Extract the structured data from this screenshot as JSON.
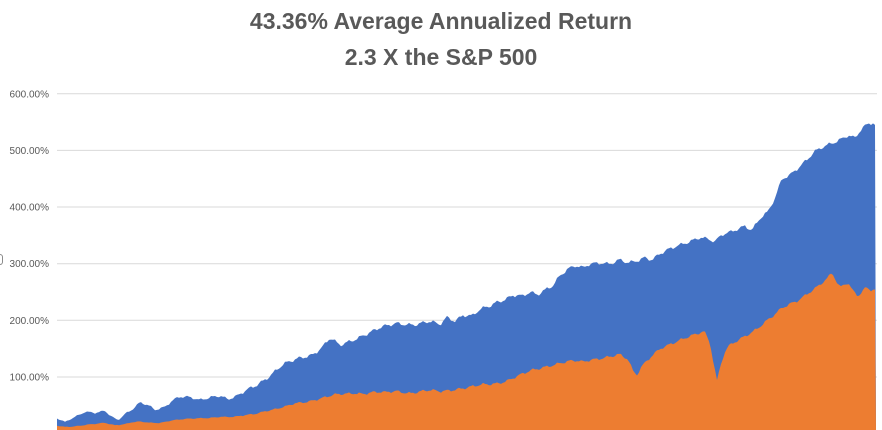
{
  "chart_data": {
    "type": "area",
    "title": "43.36% Average Annualized Return",
    "subtitle": "2.3 X the S&P 500",
    "xlabel": "",
    "ylabel": "",
    "x_axis": {
      "labels_visible": false,
      "unit": "px",
      "range": [
        57,
        876
      ]
    },
    "y_axis": {
      "unit": "%",
      "ylim": [
        0,
        600
      ],
      "tick_values": [
        600,
        500,
        400,
        300,
        200,
        100,
        0
      ],
      "tick_labels": [
        "600.00%",
        "500.00%",
        "400.00%",
        "300.00%",
        "200.00%",
        "100.00%",
        "0.00%"
      ]
    },
    "grid": true,
    "legend": "none",
    "colors": {
      "blue_series": "#4472C4",
      "orange_series": "#ED7D31",
      "gridline": "#d9d9d9",
      "text": "#595959"
    },
    "series": [
      {
        "name": "cumulative-return-blue",
        "color": "#4472C4",
        "noise_amplitude_pct": 5,
        "points": [
          [
            57,
            27
          ],
          [
            65,
            21
          ],
          [
            75,
            30
          ],
          [
            85,
            38
          ],
          [
            95,
            36
          ],
          [
            105,
            40
          ],
          [
            112,
            30
          ],
          [
            118,
            24
          ],
          [
            125,
            35
          ],
          [
            132,
            42
          ],
          [
            140,
            54
          ],
          [
            148,
            50
          ],
          [
            155,
            42
          ],
          [
            165,
            48
          ],
          [
            172,
            59
          ],
          [
            180,
            65
          ],
          [
            190,
            63
          ],
          [
            200,
            59
          ],
          [
            210,
            65
          ],
          [
            220,
            68
          ],
          [
            228,
            60
          ],
          [
            238,
            66
          ],
          [
            247,
            77
          ],
          [
            255,
            85
          ],
          [
            268,
            100
          ],
          [
            283,
            121
          ],
          [
            300,
            134
          ],
          [
            312,
            140
          ],
          [
            322,
            152
          ],
          [
            330,
            168
          ],
          [
            340,
            155
          ],
          [
            352,
            165
          ],
          [
            363,
            174
          ],
          [
            380,
            186
          ],
          [
            397,
            195
          ],
          [
            415,
            193
          ],
          [
            430,
            197
          ],
          [
            440,
            192
          ],
          [
            447,
            206
          ],
          [
            455,
            200
          ],
          [
            463,
            210
          ],
          [
            472,
            207
          ],
          [
            480,
            218
          ],
          [
            490,
            225
          ],
          [
            497,
            233
          ],
          [
            505,
            238
          ],
          [
            513,
            245
          ],
          [
            522,
            242
          ],
          [
            530,
            248
          ],
          [
            538,
            245
          ],
          [
            547,
            257
          ],
          [
            553,
            263
          ],
          [
            560,
            280
          ],
          [
            568,
            290
          ],
          [
            575,
            295
          ],
          [
            583,
            292
          ],
          [
            590,
            300
          ],
          [
            600,
            303
          ],
          [
            610,
            300
          ],
          [
            620,
            306
          ],
          [
            628,
            300
          ],
          [
            637,
            305
          ],
          [
            645,
            312
          ],
          [
            652,
            308
          ],
          [
            660,
            318
          ],
          [
            670,
            325
          ],
          [
            680,
            332
          ],
          [
            690,
            340
          ],
          [
            700,
            348
          ],
          [
            708,
            344
          ],
          [
            715,
            338
          ],
          [
            722,
            350
          ],
          [
            730,
            355
          ],
          [
            738,
            362
          ],
          [
            745,
            368
          ],
          [
            752,
            360
          ],
          [
            760,
            380
          ],
          [
            768,
            390
          ],
          [
            775,
            415
          ],
          [
            782,
            450
          ],
          [
            790,
            458
          ],
          [
            798,
            470
          ],
          [
            806,
            482
          ],
          [
            815,
            497
          ],
          [
            823,
            505
          ],
          [
            832,
            513
          ],
          [
            840,
            520
          ],
          [
            848,
            528
          ],
          [
            855,
            522
          ],
          [
            862,
            538
          ],
          [
            868,
            545
          ],
          [
            873,
            548
          ],
          [
            876,
            542
          ]
        ]
      },
      {
        "name": "sp500-cumulative-return-orange",
        "color": "#ED7D31",
        "noise_amplitude_pct": 4,
        "points": [
          [
            57,
            14
          ],
          [
            65,
            12
          ],
          [
            75,
            13
          ],
          [
            85,
            15
          ],
          [
            95,
            17
          ],
          [
            105,
            19
          ],
          [
            115,
            15
          ],
          [
            125,
            17
          ],
          [
            132,
            20
          ],
          [
            140,
            21
          ],
          [
            150,
            19
          ],
          [
            160,
            19
          ],
          [
            170,
            23
          ],
          [
            180,
            25
          ],
          [
            190,
            26
          ],
          [
            200,
            27
          ],
          [
            210,
            28
          ],
          [
            220,
            30
          ],
          [
            228,
            29
          ],
          [
            238,
            30
          ],
          [
            247,
            33
          ],
          [
            255,
            35
          ],
          [
            265,
            40
          ],
          [
            275,
            43
          ],
          [
            285,
            47
          ],
          [
            295,
            53
          ],
          [
            305,
            56
          ],
          [
            315,
            60
          ],
          [
            325,
            64
          ],
          [
            335,
            68
          ],
          [
            345,
            70
          ],
          [
            355,
            72
          ],
          [
            363,
            71
          ],
          [
            375,
            73
          ],
          [
            385,
            72
          ],
          [
            397,
            75
          ],
          [
            410,
            72
          ],
          [
            420,
            74
          ],
          [
            430,
            76
          ],
          [
            440,
            74
          ],
          [
            450,
            77
          ],
          [
            460,
            80
          ],
          [
            470,
            82
          ],
          [
            480,
            85
          ],
          [
            490,
            87
          ],
          [
            497,
            89
          ],
          [
            507,
            94
          ],
          [
            515,
            100
          ],
          [
            523,
            105
          ],
          [
            530,
            110
          ],
          [
            538,
            114
          ],
          [
            545,
            118
          ],
          [
            553,
            122
          ],
          [
            560,
            125
          ],
          [
            568,
            127
          ],
          [
            575,
            128
          ],
          [
            583,
            126
          ],
          [
            590,
            130
          ],
          [
            598,
            133
          ],
          [
            605,
            135
          ],
          [
            612,
            137
          ],
          [
            620,
            139
          ],
          [
            628,
            130
          ],
          [
            633,
            110
          ],
          [
            637,
            104
          ],
          [
            642,
            120
          ],
          [
            648,
            132
          ],
          [
            655,
            143
          ],
          [
            660,
            150
          ],
          [
            668,
            155
          ],
          [
            675,
            160
          ],
          [
            682,
            166
          ],
          [
            690,
            173
          ],
          [
            698,
            178
          ],
          [
            704,
            182
          ],
          [
            710,
            160
          ],
          [
            714,
            120
          ],
          [
            717,
            92
          ],
          [
            720,
            115
          ],
          [
            724,
            140
          ],
          [
            728,
            153
          ],
          [
            735,
            162
          ],
          [
            742,
            170
          ],
          [
            750,
            178
          ],
          [
            758,
            186
          ],
          [
            765,
            196
          ],
          [
            772,
            205
          ],
          [
            782,
            222
          ],
          [
            790,
            230
          ],
          [
            798,
            236
          ],
          [
            806,
            245
          ],
          [
            815,
            255
          ],
          [
            822,
            265
          ],
          [
            828,
            275
          ],
          [
            832,
            285
          ],
          [
            837,
            268
          ],
          [
            840,
            259
          ],
          [
            845,
            265
          ],
          [
            848,
            268
          ],
          [
            853,
            252
          ],
          [
            858,
            242
          ],
          [
            862,
            250
          ],
          [
            866,
            257
          ],
          [
            870,
            252
          ],
          [
            874,
            255
          ],
          [
            876,
            252
          ]
        ]
      }
    ],
    "annotations": {
      "clipped_axis_title_fragment": "]"
    }
  }
}
